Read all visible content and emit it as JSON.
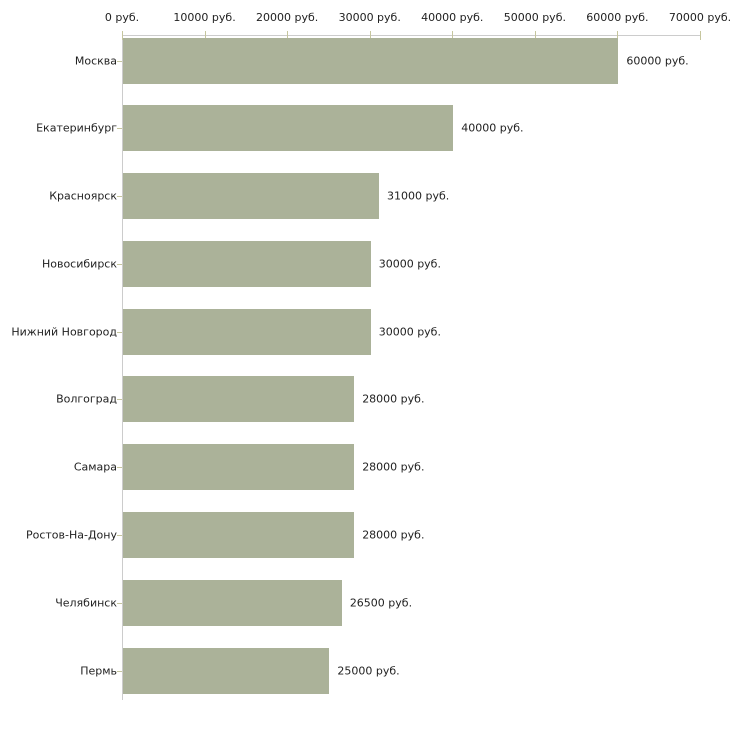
{
  "chart_data": {
    "type": "bar",
    "orientation": "horizontal",
    "unit": "руб.",
    "xlim": [
      0,
      70000
    ],
    "x_tick_values": [
      0,
      10000,
      20000,
      30000,
      40000,
      50000,
      60000,
      70000
    ],
    "x_tick_labels": [
      "0 руб.",
      "10000 руб.",
      "20000 руб.",
      "30000 руб.",
      "40000 руб.",
      "50000 руб.",
      "60000 руб.",
      "70000 руб."
    ],
    "categories": [
      "Москва",
      "Екатеринбург",
      "Красноярск",
      "Новосибирск",
      "Нижний Новгород",
      "Волгоград",
      "Самара",
      "Ростов-На-Дону",
      "Челябинск",
      "Пермь"
    ],
    "values": [
      60000,
      40000,
      31000,
      30000,
      30000,
      28000,
      28000,
      28000,
      26500,
      25000
    ],
    "value_labels": [
      "60000 руб.",
      "40000 руб.",
      "31000 руб.",
      "30000 руб.",
      "30000 руб.",
      "28000 руб.",
      "28000 руб.",
      "28000 руб.",
      "26500 руб.",
      "25000 руб."
    ],
    "grid": false,
    "legend": false,
    "colors": {
      "bar": "#abb299",
      "axis": "#cccccc",
      "tick": "#c6c69e",
      "text": "#222222",
      "background": "#ffffff"
    }
  }
}
